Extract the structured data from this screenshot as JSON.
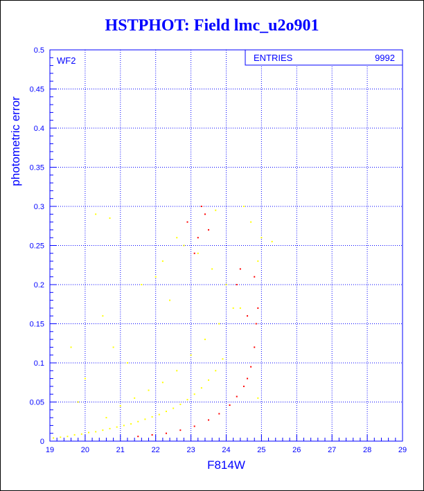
{
  "chart_data": {
    "type": "scatter",
    "title": "HSTPHOT: Field lmc_u2o901",
    "xlabel": "F814W",
    "ylabel": "photometric error",
    "xlim": [
      19,
      29
    ],
    "ylim": [
      0,
      0.5
    ],
    "x_ticks": [
      "19",
      "20",
      "21",
      "22",
      "23",
      "24",
      "25",
      "26",
      "27",
      "28",
      "29"
    ],
    "y_ticks": [
      "0",
      "0.05",
      "0.1",
      "0.15",
      "0.2",
      "0.25",
      "0.3",
      "0.35",
      "0.4",
      "0.45",
      "0.5"
    ],
    "grid": true,
    "panel_label": "WF2",
    "stats_box": {
      "label": "ENTRIES",
      "value": "9992"
    },
    "series": [
      {
        "color": "#ffff00",
        "points": [
          [
            19.1,
            0.004
          ],
          [
            19.3,
            0.005
          ],
          [
            19.5,
            0.006
          ],
          [
            19.7,
            0.008
          ],
          [
            19.9,
            0.009
          ],
          [
            20.1,
            0.011
          ],
          [
            20.3,
            0.012
          ],
          [
            20.5,
            0.014
          ],
          [
            20.7,
            0.016
          ],
          [
            20.9,
            0.018
          ],
          [
            21.1,
            0.02
          ],
          [
            21.3,
            0.022
          ],
          [
            21.5,
            0.025
          ],
          [
            21.7,
            0.028
          ],
          [
            21.9,
            0.031
          ],
          [
            22.1,
            0.034
          ],
          [
            22.3,
            0.038
          ],
          [
            22.5,
            0.042
          ],
          [
            22.7,
            0.047
          ],
          [
            22.9,
            0.053
          ],
          [
            23.1,
            0.06
          ],
          [
            23.3,
            0.068
          ],
          [
            23.5,
            0.078
          ],
          [
            23.7,
            0.09
          ],
          [
            23.9,
            0.105
          ],
          [
            20.6,
            0.03
          ],
          [
            21.0,
            0.045
          ],
          [
            21.4,
            0.055
          ],
          [
            21.8,
            0.065
          ],
          [
            22.2,
            0.075
          ],
          [
            22.6,
            0.09
          ],
          [
            23.0,
            0.11
          ],
          [
            23.4,
            0.13
          ],
          [
            23.8,
            0.15
          ],
          [
            24.2,
            0.17
          ],
          [
            20.5,
            0.16
          ],
          [
            20.8,
            0.12
          ],
          [
            21.6,
            0.2
          ],
          [
            22.0,
            0.21
          ],
          [
            22.4,
            0.18
          ],
          [
            22.8,
            0.25
          ],
          [
            23.2,
            0.24
          ],
          [
            23.6,
            0.22
          ],
          [
            24.0,
            0.2
          ],
          [
            24.4,
            0.17
          ],
          [
            24.5,
            0.3
          ],
          [
            24.7,
            0.28
          ],
          [
            25.0,
            0.26
          ],
          [
            25.3,
            0.255
          ],
          [
            24.9,
            0.23
          ],
          [
            20.3,
            0.29
          ],
          [
            20.7,
            0.285
          ],
          [
            22.2,
            0.23
          ],
          [
            23.7,
            0.295
          ],
          [
            24.9,
            0.055
          ],
          [
            19.6,
            0.12
          ],
          [
            19.8,
            0.05
          ],
          [
            20.0,
            0.08
          ],
          [
            21.2,
            0.1
          ],
          [
            22.6,
            0.26
          ]
        ]
      },
      {
        "color": "#ff0000",
        "points": [
          [
            21.5,
            0.006
          ],
          [
            21.9,
            0.008
          ],
          [
            22.3,
            0.01
          ],
          [
            22.7,
            0.014
          ],
          [
            23.1,
            0.019
          ],
          [
            23.5,
            0.027
          ],
          [
            23.8,
            0.035
          ],
          [
            24.1,
            0.046
          ],
          [
            24.3,
            0.057
          ],
          [
            24.5,
            0.07
          ],
          [
            24.6,
            0.08
          ],
          [
            24.7,
            0.095
          ],
          [
            24.8,
            0.12
          ],
          [
            24.85,
            0.15
          ],
          [
            24.9,
            0.17
          ],
          [
            23.3,
            0.3
          ],
          [
            23.4,
            0.29
          ],
          [
            23.2,
            0.26
          ],
          [
            23.1,
            0.24
          ],
          [
            24.4,
            0.22
          ],
          [
            24.8,
            0.21
          ],
          [
            24.3,
            0.2
          ],
          [
            23.5,
            0.27
          ],
          [
            22.9,
            0.28
          ],
          [
            24.6,
            0.16
          ]
        ]
      }
    ]
  },
  "colors": {
    "axes": "#0000ff",
    "grid": "#0000ff",
    "background": "#ffffff",
    "bright_stars": "#ffff00",
    "faint_stars": "#ff0000"
  }
}
